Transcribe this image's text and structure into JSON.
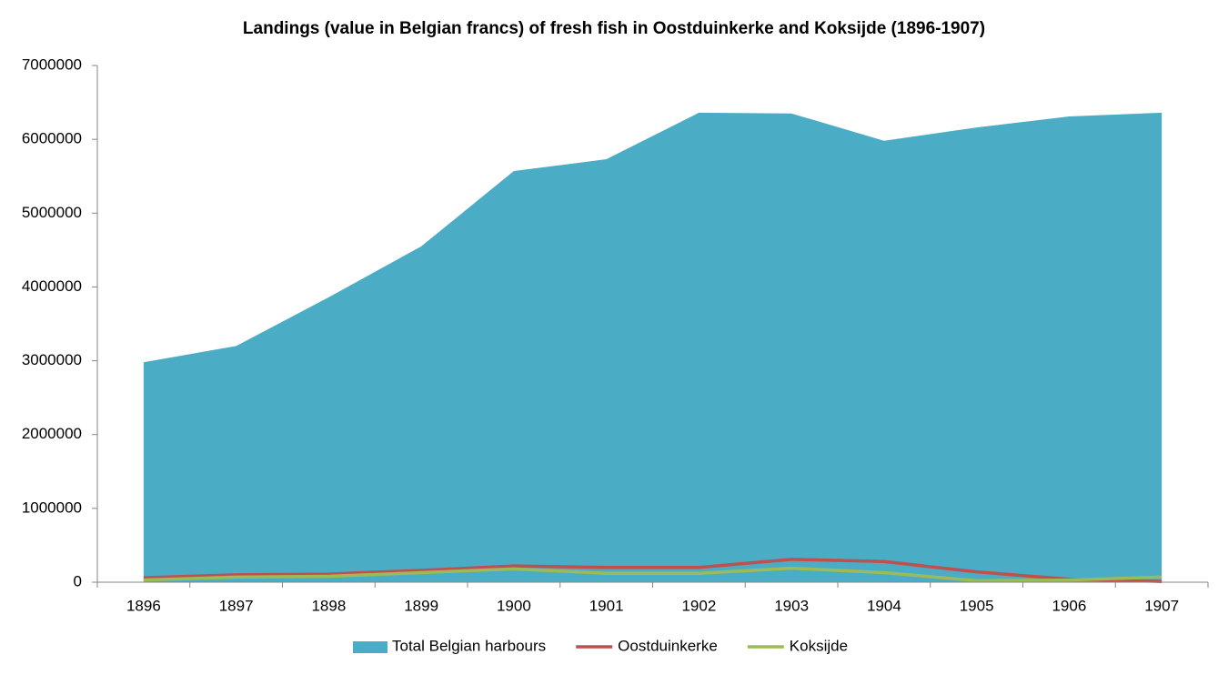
{
  "chart_data": {
    "type": "area",
    "title": "Landings (value in Belgian francs)  of fresh fish in Oostduinkerke and Koksijde (1896-1907)",
    "categories": [
      "1896",
      "1897",
      "1898",
      "1899",
      "1900",
      "1901",
      "1902",
      "1903",
      "1904",
      "1905",
      "1906",
      "1907"
    ],
    "series": [
      {
        "name": "Total Belgian harbours",
        "type": "area",
        "color": "#4bacc6",
        "values": [
          2980000,
          3200000,
          3860000,
          4550000,
          5570000,
          5730000,
          6360000,
          6350000,
          5980000,
          6160000,
          6310000,
          6360000
        ]
      },
      {
        "name": "Oostduinkerke",
        "type": "line",
        "color": "#c0504d",
        "values": [
          60000,
          100000,
          110000,
          160000,
          220000,
          200000,
          200000,
          310000,
          280000,
          140000,
          40000,
          10000
        ]
      },
      {
        "name": "Koksijde",
        "type": "line",
        "color": "#9bbb59",
        "values": [
          30000,
          70000,
          80000,
          130000,
          180000,
          120000,
          120000,
          190000,
          130000,
          20000,
          30000,
          70000
        ]
      }
    ],
    "ylim": [
      0,
      7000000
    ],
    "yticks": [
      0,
      1000000,
      2000000,
      3000000,
      4000000,
      5000000,
      6000000,
      7000000
    ],
    "grid": false,
    "legend": "bottom"
  }
}
